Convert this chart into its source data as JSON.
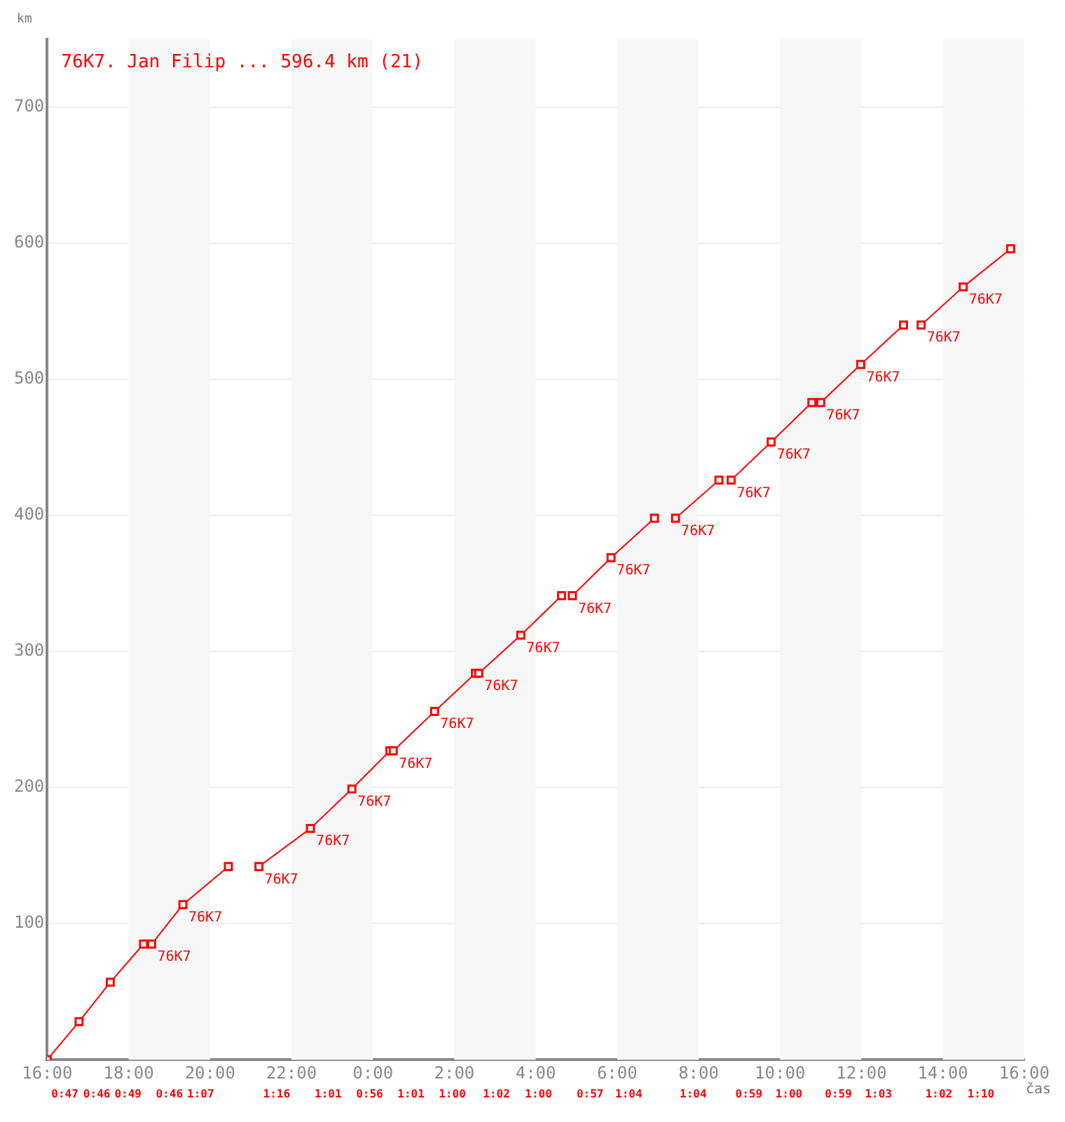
{
  "chart_data": {
    "type": "line",
    "title": "76K7. Jan Filip ... 596.4 km (21)",
    "xlabel": "čas",
    "ylabel": "km",
    "series": [
      {
        "color": "#ff0000",
        "x": [
          "--01-01T16:00",
          "--01-01T16:47",
          "--01-01T17:33",
          "--01-01T18:22",
          "--01-01T18:28",
          "--01-01T18:34",
          "--01-01T19:20",
          "--01-01T20:27",
          "--01-01T20:48",
          "--01-01T21:12",
          "--01-01T22:28",
          "--01-01T23:29",
          "--01-02T00:25",
          "--01-02T00:27",
          "--01-02T00:30",
          "--01-02T01:31",
          "--01-02T02:31",
          "--01-02T02:34",
          "--01-02T02:36",
          "--01-02T03:38",
          "--01-02T04:38",
          "--01-02T04:46",
          "--01-02T04:54",
          "--01-02T05:51",
          "--01-02T06:55",
          "--01-02T07:12",
          "--01-02T07:26",
          "--01-02T08:30",
          "--01-02T08:39",
          "--01-02T08:48",
          "--01-02T09:47",
          "--01-02T10:47",
          "--01-02T10:54",
          "--01-02T11:00",
          "--01-02T11:59",
          "--01-02T13:02",
          "--01-02T13:15",
          "--01-02T13:28",
          "--01-02T14:30",
          "--01-02T15:40"
        ],
        "values": [
          0,
          28,
          57,
          85,
          null,
          85,
          114,
          142,
          null,
          142,
          170,
          199,
          227,
          null,
          227,
          256,
          284,
          null,
          284,
          312,
          341,
          null,
          341,
          369,
          398,
          null,
          398,
          426,
          null,
          426,
          454,
          483,
          null,
          483,
          511,
          540,
          null,
          540,
          568,
          596
        ]
      }
    ],
    "xlim": [
      "--01-01T16:00",
      "--01-02T16:00"
    ],
    "xticks": [
      {
        "value": "--01-01T16:00",
        "label": "16:00"
      },
      {
        "value": "--01-01T18:00",
        "label": "18:00"
      },
      {
        "value": "--01-01T20:00",
        "label": "20:00"
      },
      {
        "value": "--01-01T22:00",
        "label": "22:00"
      },
      {
        "value": "--01-02T00:00",
        "label": "0:00"
      },
      {
        "value": "--01-02T02:00",
        "label": "2:00"
      },
      {
        "value": "--01-02T04:00",
        "label": "4:00"
      },
      {
        "value": "--01-02T06:00",
        "label": "6:00"
      },
      {
        "value": "--01-02T08:00",
        "label": "8:00"
      },
      {
        "value": "--01-02T10:00",
        "label": "10:00"
      },
      {
        "value": "--01-02T12:00",
        "label": "12:00"
      },
      {
        "value": "--01-02T14:00",
        "label": "14:00"
      },
      {
        "value": "--01-02T16:00",
        "label": "16:00"
      }
    ],
    "ylim": [
      0,
      750
    ],
    "yticks": [
      100,
      200,
      300,
      400,
      500,
      600,
      700
    ],
    "grid": "y",
    "marker": "square",
    "line_style": "solid",
    "legend": false,
    "bands": [
      {
        "axis": "x",
        "from": "--01-01T18:00",
        "to": "--01-01T20:00",
        "color": "#f7f7f7"
      },
      {
        "axis": "x",
        "from": "--01-01T22:00",
        "to": "--01-02T00:00",
        "color": "#f7f7f7"
      },
      {
        "axis": "x",
        "from": "--01-02T02:00",
        "to": "--01-02T04:00",
        "color": "#f7f7f7"
      },
      {
        "axis": "x",
        "from": "--01-02T06:00",
        "to": "--01-02T08:00",
        "color": "#f7f7f7"
      },
      {
        "axis": "x",
        "from": "--01-02T10:00",
        "to": "--01-02T12:00",
        "color": "#f7f7f7"
      },
      {
        "axis": "x",
        "from": "--01-02T14:00",
        "to": "--01-02T16:00",
        "color": "#f7f7f7"
      }
    ],
    "annotations": [
      "0:47",
      "0:46",
      "0:49",
      "0:46",
      "1:07",
      "1:16",
      "1:01",
      "0:56",
      "1:01",
      "1:00",
      "1:02",
      "1:00",
      "0:57",
      "1:04",
      "1:04",
      "0:59",
      "1:00",
      "0:59",
      "1:03",
      "1:02",
      "1:10",
      {
        "text": "76K7",
        "x": "--01-01T18:34",
        "y": 85
      },
      {
        "text": "76K7",
        "x": "--01-01T19:20",
        "y": 114
      },
      {
        "text": "76K7",
        "x": "--01-01T21:12",
        "y": 142
      },
      {
        "text": "76K7",
        "x": "--01-01T22:28",
        "y": 170
      },
      {
        "text": "76K7",
        "x": "--01-01T23:29",
        "y": 199
      },
      {
        "text": "76K7",
        "x": "--01-02T00:30",
        "y": 227
      },
      {
        "text": "76K7",
        "x": "--01-02T01:31",
        "y": 256
      },
      {
        "text": "76K7",
        "x": "--01-02T02:36",
        "y": 284
      },
      {
        "text": "76K7",
        "x": "--01-02T03:38",
        "y": 312
      },
      {
        "text": "76K7",
        "x": "--01-02T04:54",
        "y": 341
      },
      {
        "text": "76K7",
        "x": "--01-02T05:51",
        "y": 369
      },
      {
        "text": "76K7",
        "x": "--01-02T07:26",
        "y": 398
      },
      {
        "text": "76K7",
        "x": "--01-02T08:48",
        "y": 426
      },
      {
        "text": "76K7",
        "x": "--01-02T09:47",
        "y": 454
      },
      {
        "text": "76K7",
        "x": "--01-02T11:00",
        "y": 483
      },
      {
        "text": "76K7",
        "x": "--01-02T11:59",
        "y": 511
      },
      {
        "text": "76K7",
        "x": "--01-02T13:28",
        "y": 540
      },
      {
        "text": "76K7",
        "x": "--01-02T14:30",
        "y": 568
      }
    ]
  }
}
